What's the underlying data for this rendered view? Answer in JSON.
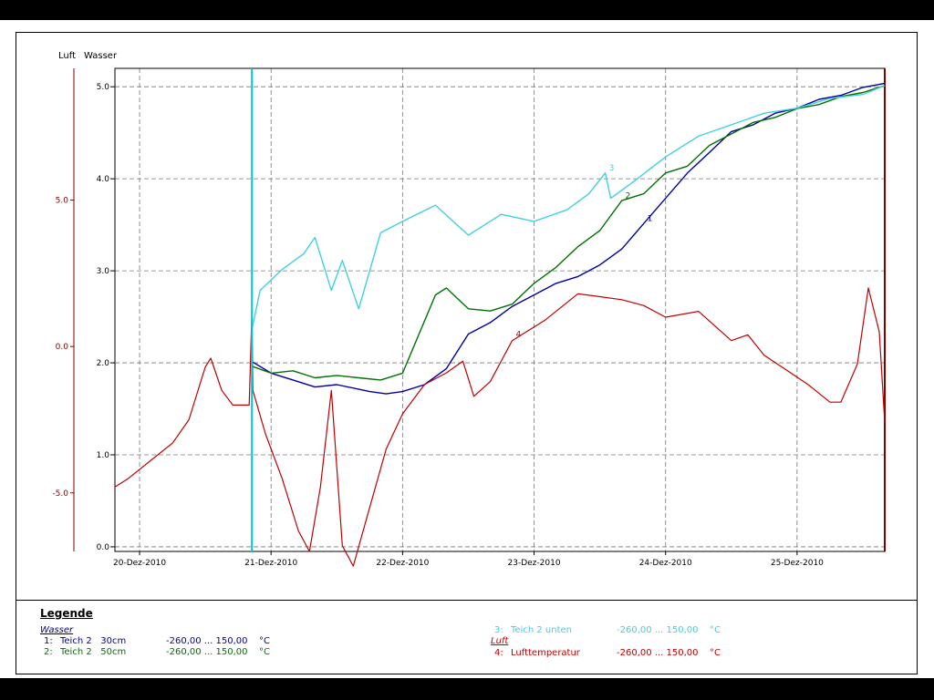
{
  "chart_data": {
    "type": "line",
    "left_axis_labels": [
      "Luft",
      "Wasser"
    ],
    "x_ticks": [
      "20-Dez-2010",
      "21-Dez-2010",
      "22-Dez-2010",
      "23-Dez-2010",
      "24-Dez-2010",
      "25-Dez-2010"
    ],
    "xlim": [
      "2010-12-19T19:30",
      "2010-12-25T16:00"
    ],
    "wasser_axis": {
      "ticks": [
        "0.0",
        "1.0",
        "2.0",
        "3.0",
        "4.0",
        "5.0"
      ],
      "ylim": [
        -0.05,
        5.2
      ]
    },
    "luft_axis": {
      "ticks": [
        "-5.0",
        "0.0",
        "5.0"
      ],
      "ylim": [
        -7.0,
        9.5
      ]
    },
    "grid": true,
    "marker": {
      "time": "2010-12-20T20:30",
      "color": "#00c8d8"
    },
    "series": [
      {
        "name": "Teich 2   30cm",
        "label": "1",
        "axis": "wasser",
        "color": "#0000a0",
        "x": [
          "2010-12-20T20:30",
          "2010-12-21T00:00",
          "2010-12-21T04:00",
          "2010-12-21T08:00",
          "2010-12-21T12:00",
          "2010-12-21T18:00",
          "2010-12-21T21:00",
          "2010-12-22T00:00",
          "2010-12-22T04:00",
          "2010-12-22T08:00",
          "2010-12-22T12:00",
          "2010-12-22T16:00",
          "2010-12-22T20:00",
          "2010-12-23T00:00",
          "2010-12-23T04:00",
          "2010-12-23T08:00",
          "2010-12-23T12:00",
          "2010-12-23T16:00",
          "2010-12-23T20:00",
          "2010-12-24T00:00",
          "2010-12-24T04:00",
          "2010-12-24T08:00",
          "2010-12-24T12:00",
          "2010-12-24T16:00",
          "2010-12-24T20:00",
          "2010-12-25T00:00",
          "2010-12-25T04:00",
          "2010-12-25T08:00",
          "2010-12-25T12:00",
          "2010-12-25T16:00"
        ],
        "y": [
          2.0,
          1.9,
          1.8,
          1.75,
          1.75,
          1.7,
          1.65,
          1.7,
          1.75,
          1.95,
          2.3,
          2.45,
          2.6,
          2.75,
          2.85,
          2.95,
          3.05,
          3.25,
          3.5,
          3.8,
          4.05,
          4.3,
          4.5,
          4.6,
          4.7,
          4.78,
          4.85,
          4.92,
          4.98,
          5.05
        ]
      },
      {
        "name": "Teich 2   50cm",
        "label": "2",
        "axis": "wasser",
        "color": "#007000",
        "x": [
          "2010-12-20T20:30",
          "2010-12-21T00:00",
          "2010-12-21T04:00",
          "2010-12-21T08:00",
          "2010-12-21T12:00",
          "2010-12-21T16:00",
          "2010-12-21T20:00",
          "2010-12-22T00:00",
          "2010-12-22T03:00",
          "2010-12-22T06:00",
          "2010-12-22T08:00",
          "2010-12-22T12:00",
          "2010-12-22T16:00",
          "2010-12-22T20:00",
          "2010-12-23T00:00",
          "2010-12-23T04:00",
          "2010-12-23T08:00",
          "2010-12-23T12:00",
          "2010-12-23T16:00",
          "2010-12-23T20:00",
          "2010-12-24T00:00",
          "2010-12-24T04:00",
          "2010-12-24T08:00",
          "2010-12-24T12:00",
          "2010-12-24T16:00",
          "2010-12-24T20:00",
          "2010-12-25T00:00",
          "2010-12-25T04:00",
          "2010-12-25T08:00",
          "2010-12-25T12:00",
          "2010-12-25T16:00"
        ],
        "y": [
          1.95,
          1.9,
          1.9,
          1.85,
          1.85,
          1.85,
          1.8,
          1.9,
          2.3,
          2.75,
          2.8,
          2.6,
          2.55,
          2.65,
          2.85,
          3.05,
          3.25,
          3.45,
          3.75,
          3.85,
          4.05,
          4.15,
          4.35,
          4.5,
          4.6,
          4.68,
          4.75,
          4.82,
          4.88,
          4.95,
          5.0
        ]
      },
      {
        "name": "Teich 2 unten",
        "label": "3",
        "axis": "wasser",
        "color": "#40d0e0",
        "x": [
          "2010-12-20T20:30",
          "2010-12-20T22:00",
          "2010-12-21T02:00",
          "2010-12-21T06:00",
          "2010-12-21T08:00",
          "2010-12-21T11:00",
          "2010-12-21T13:00",
          "2010-12-21T16:00",
          "2010-12-21T20:00",
          "2010-12-22T00:00",
          "2010-12-22T06:00",
          "2010-12-22T12:00",
          "2010-12-22T18:00",
          "2010-12-23T00:00",
          "2010-12-23T06:00",
          "2010-12-23T10:00",
          "2010-12-23T13:00",
          "2010-12-23T14:00",
          "2010-12-23T18:00",
          "2010-12-24T00:00",
          "2010-12-24T06:00",
          "2010-12-24T12:00",
          "2010-12-24T18:00",
          "2010-12-25T00:00",
          "2010-12-25T06:00",
          "2010-12-25T12:00",
          "2010-12-25T16:00"
        ],
        "y": [
          2.35,
          2.8,
          3.0,
          3.2,
          3.35,
          2.8,
          3.1,
          2.6,
          3.4,
          3.55,
          3.7,
          3.4,
          3.6,
          3.55,
          3.65,
          3.85,
          4.05,
          3.8,
          3.95,
          4.25,
          4.45,
          4.6,
          4.7,
          4.78,
          4.86,
          4.93,
          5.0
        ]
      },
      {
        "name": "Lufttemperatur",
        "label": "4",
        "axis": "luft",
        "color": "#c00000",
        "x": [
          "2010-12-19T19:30",
          "2010-12-19T22:00",
          "2010-12-20T02:00",
          "2010-12-20T06:00",
          "2010-12-20T09:00",
          "2010-12-20T12:00",
          "2010-12-20T13:00",
          "2010-12-20T15:00",
          "2010-12-20T17:00",
          "2010-12-20T20:00",
          "2010-12-20T20:30",
          "2010-12-20T20:40",
          "2010-12-20T23:00",
          "2010-12-21T02:00",
          "2010-12-21T05:00",
          "2010-12-21T07:00",
          "2010-12-21T09:00",
          "2010-12-21T11:00",
          "2010-12-21T13:00",
          "2010-12-21T15:00",
          "2010-12-21T18:00",
          "2010-12-21T21:00",
          "2010-12-22T00:00",
          "2010-12-22T04:00",
          "2010-12-22T08:00",
          "2010-12-22T11:00",
          "2010-12-22T13:00",
          "2010-12-22T16:00",
          "2010-12-22T20:00",
          "2010-12-23T02:00",
          "2010-12-23T08:00",
          "2010-12-23T12:00",
          "2010-12-23T16:00",
          "2010-12-23T20:00",
          "2010-12-24T00:00",
          "2010-12-24T06:00",
          "2010-12-24T12:00",
          "2010-12-24T15:00",
          "2010-12-24T18:00",
          "2010-12-24T22:00",
          "2010-12-25T02:00",
          "2010-12-25T06:00",
          "2010-12-25T08:00",
          "2010-12-25T11:00",
          "2010-12-25T13:00",
          "2010-12-25T15:00",
          "2010-12-25T16:00"
        ],
        "y": [
          -4.8,
          -4.5,
          -3.9,
          -3.3,
          -2.5,
          -0.7,
          -0.4,
          -1.5,
          -2.0,
          -2.0,
          1.2,
          -1.5,
          -3.0,
          -4.5,
          -6.3,
          -7.0,
          -4.8,
          -1.5,
          -6.8,
          -7.5,
          -5.5,
          -3.5,
          -2.3,
          -1.3,
          -0.9,
          -0.5,
          -1.7,
          -1.2,
          0.2,
          0.9,
          1.8,
          1.7,
          1.6,
          1.4,
          1.0,
          1.2,
          0.2,
          0.4,
          -0.3,
          -0.8,
          -1.3,
          -1.9,
          -1.9,
          -0.6,
          2.0,
          0.5,
          -2.6
        ]
      }
    ]
  },
  "legend": {
    "title": "Legende",
    "wasser_header": "Wasser",
    "luft_header": "Luft",
    "items": [
      {
        "num": "1:",
        "name": "Teich 2   30cm",
        "range": "-260,00 ... 150,00",
        "unit": "°C",
        "color": "#0000a0"
      },
      {
        "num": "2:",
        "name": "Teich 2   50cm",
        "range": "-260,00 ... 150,00",
        "unit": "°C",
        "color": "#007000"
      },
      {
        "num": "3:",
        "name": "Teich 2 unten",
        "range": "-260,00 ... 150,00",
        "unit": "°C",
        "color": "#40d0e0"
      },
      {
        "num": "4:",
        "name": "Lufttemperatur",
        "range": "-260,00 ... 150,00",
        "unit": "°C",
        "color": "#c00000"
      }
    ]
  }
}
